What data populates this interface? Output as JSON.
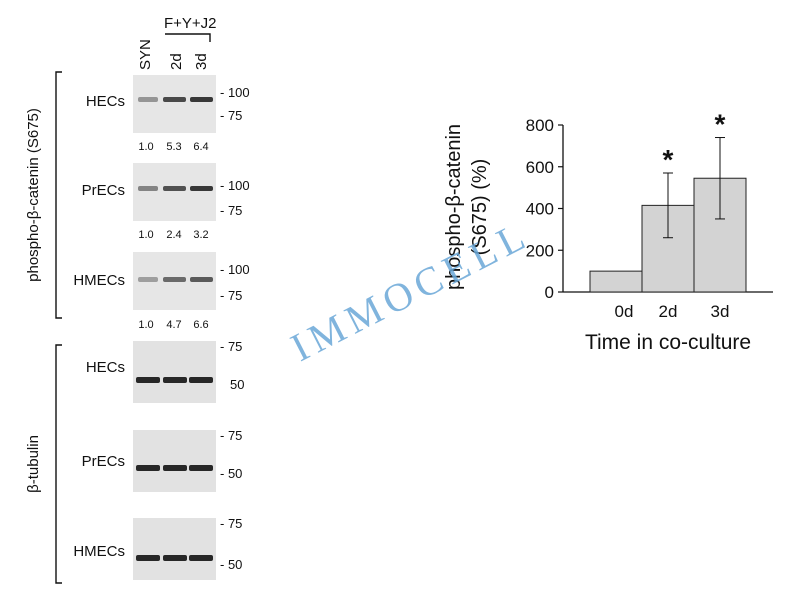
{
  "blot": {
    "col_labels": [
      "SYN",
      "2d",
      "3d"
    ],
    "treatment_label": "F+Y+J2",
    "group_labels": [
      "phospho-β-catenin (S675)",
      "β-tubulin"
    ],
    "panels": [
      {
        "cell": "HECs",
        "markers": [
          "- 100",
          "- 75"
        ],
        "quant": [
          "1.0",
          "5.3",
          "6.4"
        ],
        "bands": [
          0.3,
          0.75,
          0.85
        ]
      },
      {
        "cell": "PrECs",
        "markers": [
          "- 100",
          "- 75"
        ],
        "quant": [
          "1.0",
          "2.4",
          "3.2"
        ],
        "bands": [
          0.4,
          0.7,
          0.85
        ]
      },
      {
        "cell": "HMECs",
        "markers": [
          "- 100",
          "- 75"
        ],
        "quant": [
          "1.0",
          "4.7",
          "6.6"
        ],
        "bands": [
          0.25,
          0.55,
          0.65
        ]
      },
      {
        "cell": "HECs",
        "markers": [
          "- 75",
          "50"
        ],
        "quant": [],
        "bands": [
          0.95,
          0.95,
          0.95
        ]
      },
      {
        "cell": "PrECs",
        "markers": [
          "- 75",
          "- 50"
        ],
        "quant": [],
        "bands": [
          0.95,
          0.95,
          0.95
        ]
      },
      {
        "cell": "HMECs",
        "markers": [
          "- 75",
          "- 50"
        ],
        "quant": [],
        "bands": [
          0.95,
          0.95,
          0.95
        ]
      }
    ]
  },
  "watermark": "IMMOCELL",
  "chart_data": {
    "type": "bar",
    "categories": [
      "0d",
      "2d",
      "3d"
    ],
    "values": [
      100,
      415,
      545
    ],
    "errors": [
      0,
      155,
      195
    ],
    "significance": [
      "",
      "*",
      "*"
    ],
    "title": "",
    "xlabel": "Time in co-culture",
    "ylabel_lines": [
      "phospho-β-catenin",
      "(S675) (%)"
    ],
    "ylim": [
      0,
      800
    ],
    "yticks": [
      0,
      200,
      400,
      600,
      800
    ],
    "bar_color": "#d3d3d3",
    "grid": false
  }
}
